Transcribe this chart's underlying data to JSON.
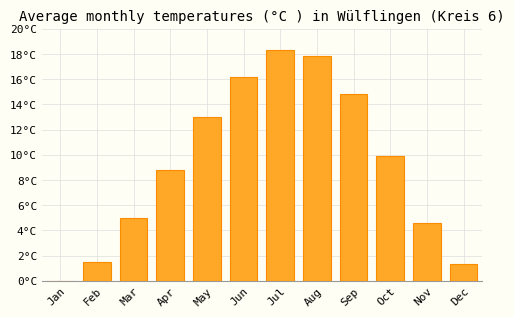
{
  "title": "Average monthly temperatures (°C ) in Wülflingen (Kreis 6)",
  "months": [
    "Jan",
    "Feb",
    "Mar",
    "Apr",
    "May",
    "Jun",
    "Jul",
    "Aug",
    "Sep",
    "Oct",
    "Nov",
    "Dec"
  ],
  "values": [
    0.0,
    1.5,
    5.0,
    8.8,
    13.0,
    16.2,
    18.3,
    17.8,
    14.8,
    9.9,
    4.6,
    1.3
  ],
  "bar_color": "#FFA726",
  "bar_edge_color": "#FB8C00",
  "background_color": "#FFFEF5",
  "grid_color": "#DDDDDD",
  "ylim": [
    0,
    20
  ],
  "ytick_step": 2,
  "title_fontsize": 10,
  "tick_fontsize": 8,
  "font_family": "monospace"
}
